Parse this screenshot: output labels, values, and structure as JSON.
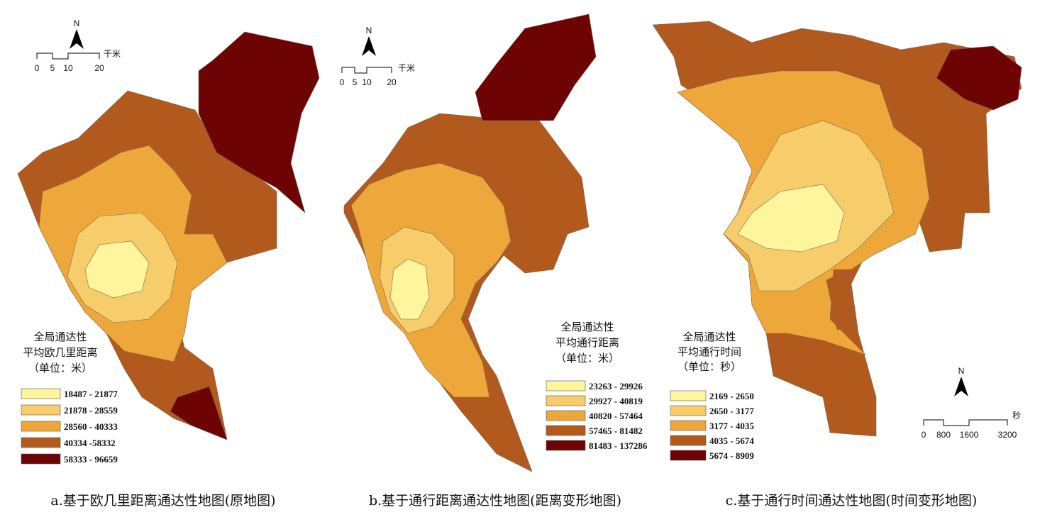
{
  "legend_colors": [
    "#fef59c",
    "#f7cd6c",
    "#eea73a",
    "#b25a1d",
    "#6e0303"
  ],
  "maps": [
    {
      "north": "N",
      "scale_labels": [
        "0",
        "5",
        "10",
        "20"
      ],
      "scale_unit": "千米",
      "legend_title": [
        "全局通达性",
        "平均欧几里距离",
        "（单位：米）"
      ],
      "legend": [
        "18487 - 21877",
        "21878 - 28559",
        "28560 - 40333",
        "40334 -58332",
        "58333 - 96659"
      ],
      "caption": "a.基于欧几里距离通达性地图(原地图)"
    },
    {
      "north": "N",
      "scale_labels": [
        "0",
        "5",
        "10",
        "20"
      ],
      "scale_unit": "千米",
      "legend_title": [
        "全局通达性",
        "平均通行距离",
        "（单位：米）"
      ],
      "legend": [
        "23263 - 29926",
        "29927 - 40819",
        "40820 - 57464",
        "57465 - 81482",
        "81483 - 137286"
      ],
      "caption": "b.基于通行距离通达性地图(距离变形地图)"
    },
    {
      "north": "N",
      "scale_labels": [
        "0",
        "800",
        "1600",
        "3200"
      ],
      "scale_unit": "秒",
      "legend_title": [
        "全局通达性",
        "平均通行时间",
        "（单位：秒）"
      ],
      "legend": [
        "2169 - 2650",
        "2650 - 3177",
        "3177 - 4035",
        "4035 - 5674",
        "5674 - 8909"
      ],
      "caption": "c.基于通行时间通达性地图(时间变形地图)"
    }
  ]
}
